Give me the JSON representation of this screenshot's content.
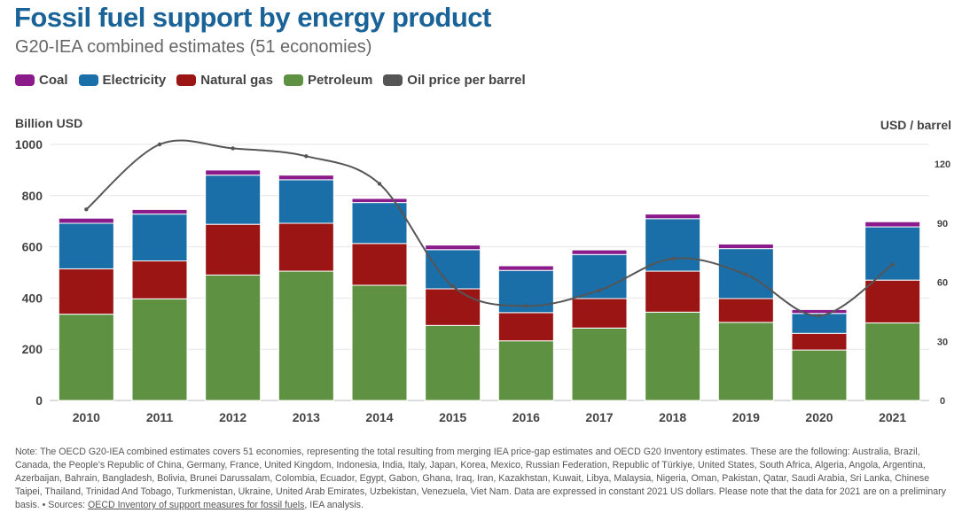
{
  "title": "Fossil fuel support by energy product",
  "subtitle": "G20-IEA combined estimates (51 economies)",
  "legend": [
    {
      "label": "Coal",
      "color": "#8b1a8b"
    },
    {
      "label": "Electricity",
      "color": "#1b6fa8"
    },
    {
      "label": "Natural gas",
      "color": "#9b1515"
    },
    {
      "label": "Petroleum",
      "color": "#5e9142"
    },
    {
      "label": "Oil price per barrel",
      "color": "#555555"
    }
  ],
  "chart_data": {
    "type": "bar",
    "stacked": true,
    "categories": [
      "2010",
      "2011",
      "2012",
      "2013",
      "2014",
      "2015",
      "2016",
      "2017",
      "2018",
      "2019",
      "2020",
      "2021"
    ],
    "series": [
      {
        "name": "Petroleum",
        "color": "#5e9142",
        "values": [
          337,
          397,
          490,
          505,
          450,
          293,
          233,
          283,
          345,
          305,
          197,
          303
        ]
      },
      {
        "name": "Natural gas",
        "color": "#9b1515",
        "values": [
          177,
          148,
          198,
          187,
          163,
          143,
          110,
          115,
          160,
          93,
          65,
          167
        ]
      },
      {
        "name": "Electricity",
        "color": "#1b6fa8",
        "values": [
          178,
          183,
          192,
          170,
          160,
          153,
          165,
          172,
          205,
          195,
          78,
          208
        ]
      },
      {
        "name": "Coal",
        "color": "#8b1a8b",
        "values": [
          20,
          18,
          20,
          18,
          16,
          18,
          18,
          18,
          18,
          18,
          15,
          20
        ]
      }
    ],
    "line": {
      "name": "Oil price per barrel",
      "color": "#555555",
      "axis": "right",
      "values": [
        97,
        130,
        128,
        124,
        110,
        58,
        48,
        56,
        72,
        64,
        43,
        69
      ]
    },
    "ylabel": "Billion USD",
    "ylim": [
      0,
      1000
    ],
    "yticks": [
      "0",
      "200",
      "400",
      "600",
      "800",
      "1000"
    ],
    "y2label": "USD / barrel",
    "y2lim": [
      0,
      130
    ],
    "y2ticks": [
      "0",
      "30",
      "60",
      "90",
      "120"
    ],
    "grid": true
  },
  "note": {
    "text": "Note: The OECD G20-IEA combined estimates covers 51 economies, representing the total resulting from merging IEA price-gap estimates and OECD G20 Inventory estimates. These are the following: Australia, Brazil, Canada, the People’s Republic of China, Germany, France, United Kingdom, Indonesia, India, Italy, Japan, Korea, Mexico, Russian Federation, Republic of Türkiye, United States, South Africa, Algeria, Angola, Argentina, Azerbaijan, Bahrain, Bangladesh, Bolivia, Brunei Darussalam, Colombia, Ecuador, Egypt, Gabon, Ghana, Iraq, Iran, Kazakhstan, Kuwait, Libya, Malaysia, Nigeria, Oman, Pakistan, Qatar, Saudi Arabia, Sri Lanka, Chinese Taipei, Thailand, Trinidad And Tobago, Turkmenistan, Ukraine, United Arab Emirates, Uzbekistan, Venezuela, Viet Nam. Data are expressed in constant 2021 US dollars. Please note that the data for 2021 are on a preliminary basis. • Sources: ",
    "link_text": "OECD Inventory of support measures for fossil fuels",
    "after_link": ", IEA analysis."
  }
}
